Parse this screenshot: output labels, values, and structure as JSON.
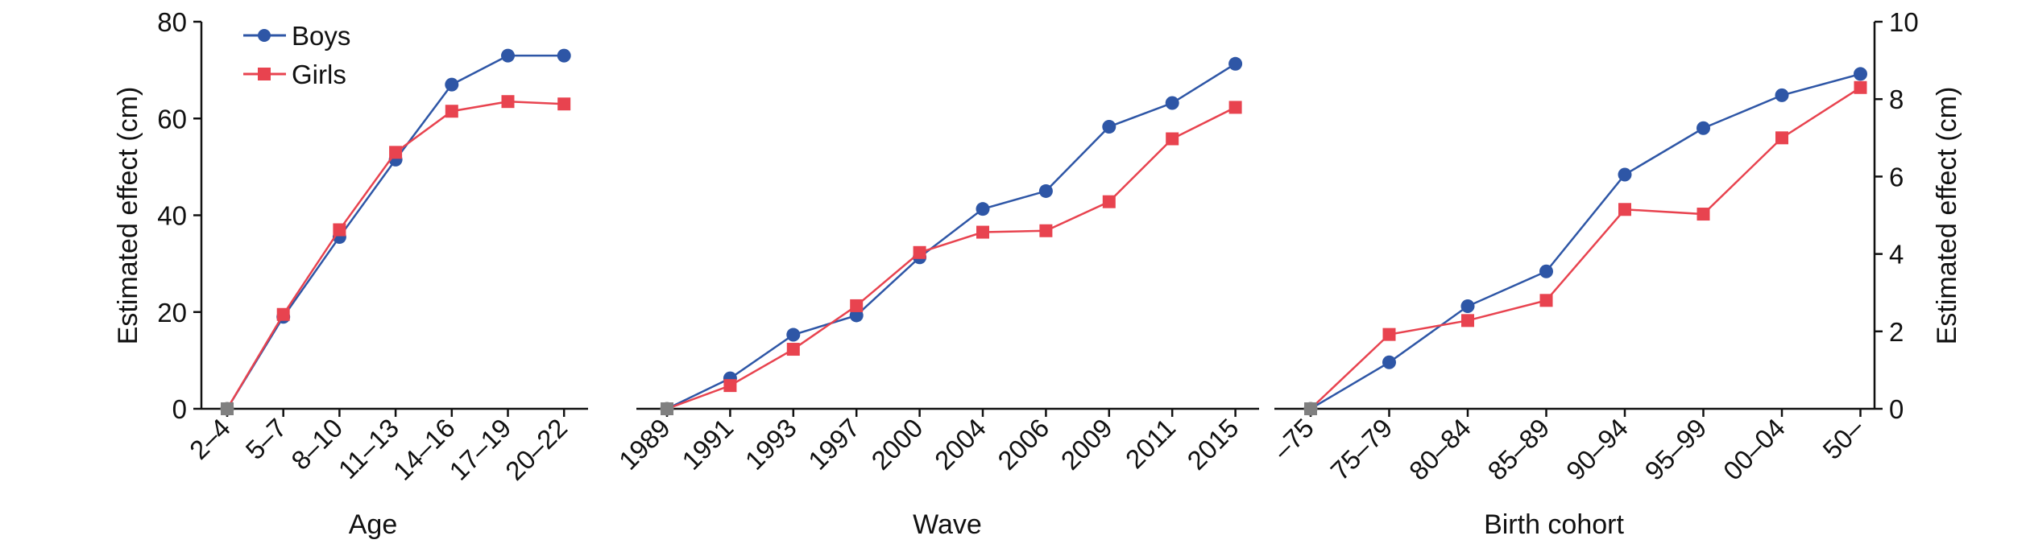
{
  "colors": {
    "boys": "#2e56a6",
    "girls": "#e8434f",
    "reference": "#808080",
    "axis": "#111111"
  },
  "legend": {
    "boys_label": "Boys",
    "girls_label": "Girls"
  },
  "chart_data": [
    {
      "type": "line",
      "xlabel": "Age",
      "ylabel": "Estimated effect (cm)",
      "ylim": [
        0,
        80
      ],
      "yticks": [
        0,
        20,
        40,
        60,
        80
      ],
      "categories": [
        "2–4",
        "5–7",
        "8–10",
        "11–13",
        "14–16",
        "17–19",
        "20–22"
      ],
      "series": [
        {
          "name": "Boys",
          "values": [
            0,
            19,
            35.5,
            51.5,
            67,
            73,
            73
          ]
        },
        {
          "name": "Girls",
          "values": [
            0,
            19.5,
            37,
            53,
            61.5,
            63.5,
            63
          ]
        }
      ]
    },
    {
      "type": "line",
      "xlabel": "Wave",
      "ylim": [
        0,
        80
      ],
      "categories": [
        "1989",
        "1991",
        "1993",
        "1997",
        "2000",
        "2004",
        "2006",
        "2009",
        "2011",
        "2015"
      ],
      "series": [
        {
          "name": "Boys",
          "values": [
            0,
            6.3,
            15.3,
            19.3,
            31.3,
            41.3,
            45,
            58.3,
            63.2,
            71.3
          ]
        },
        {
          "name": "Girls",
          "values": [
            0,
            4.8,
            12.3,
            21.3,
            32.3,
            36.5,
            36.8,
            42.8,
            55.8,
            62.3
          ]
        }
      ]
    },
    {
      "type": "line",
      "xlabel": "Birth cohort",
      "ylabel": "Estimated effect (cm)",
      "ylim": [
        0,
        10
      ],
      "yticks": [
        0,
        2,
        4,
        6,
        8,
        10
      ],
      "categories": [
        "–75",
        "75–79",
        "80–84",
        "85–89",
        "90–94",
        "95–99",
        "00–04",
        "50–"
      ],
      "series": [
        {
          "name": "Boys",
          "values": [
            0,
            1.2,
            2.65,
            3.55,
            6.05,
            7.25,
            8.1,
            8.65
          ]
        },
        {
          "name": "Girls",
          "values": [
            0,
            1.92,
            2.28,
            2.8,
            5.15,
            5.03,
            7.0,
            8.3
          ]
        }
      ]
    }
  ]
}
